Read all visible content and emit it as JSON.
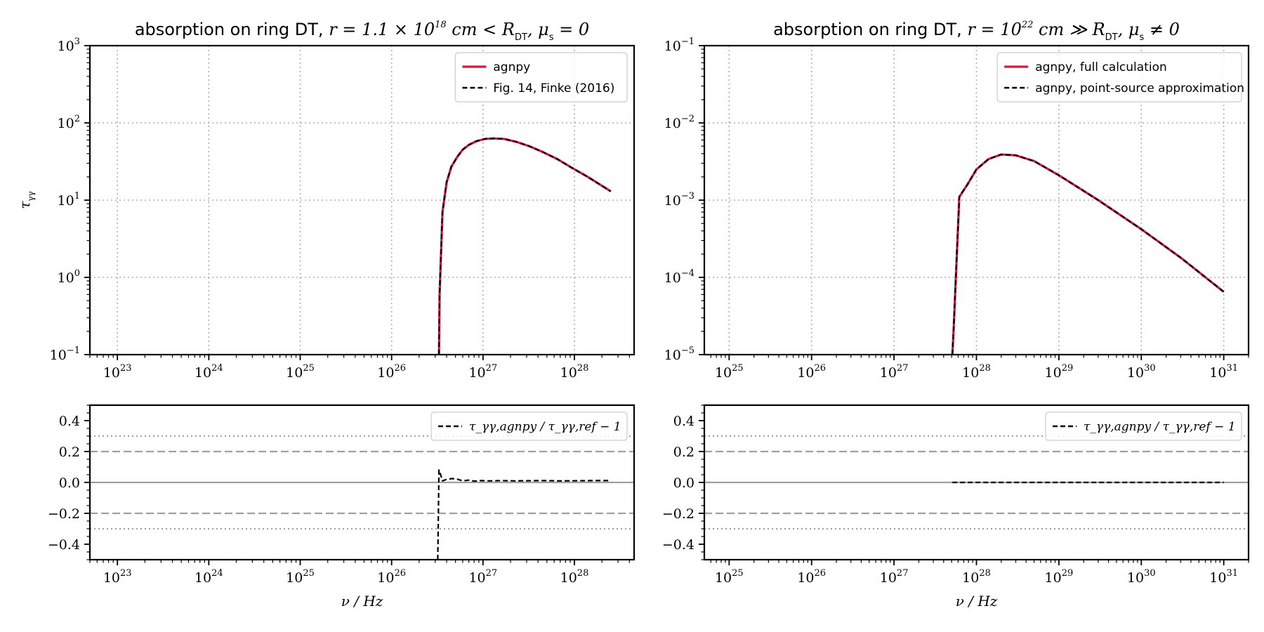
{
  "chart_data": [
    {
      "type": "line",
      "title": "absorption on ring DT, r = 1.1 × 10^18 cm < R_DT, μ_s = 0",
      "title_parts": [
        "absorption on ring DT, ",
        "r = 1.1 × 10",
        "18",
        " cm < R",
        "DT",
        ", μ",
        "s",
        " = 0"
      ],
      "xscale": "log",
      "yscale": "log",
      "xlim": [
        5e+22,
        4.5e+28
      ],
      "ylim": [
        0.1,
        1000
      ],
      "xticks": [
        1e+23,
        1e+24,
        1e+25,
        1e+26,
        1e+27,
        1e+28
      ],
      "xtick_labels": [
        [
          "10",
          "23"
        ],
        [
          "10",
          "24"
        ],
        [
          "10",
          "25"
        ],
        [
          "10",
          "26"
        ],
        [
          "10",
          "27"
        ],
        [
          "10",
          "28"
        ]
      ],
      "yticks": [
        0.1,
        1,
        10,
        100,
        1000
      ],
      "ytick_labels": [
        [
          "10",
          "−1"
        ],
        [
          "10",
          "0"
        ],
        [
          "10",
          "1"
        ],
        [
          "10",
          "2"
        ],
        [
          "10",
          "3"
        ]
      ],
      "xlabel": "",
      "ylabel": "τ_γγ",
      "ylabel_parts": [
        "τ",
        "γγ"
      ],
      "grid": true,
      "legend_position": "top-right",
      "series": [
        {
          "name": "agnpy",
          "color": "#dc143c",
          "style": "solid",
          "x": [
            3.3e+26,
            3.35e+26,
            3.6e+26,
            4e+26,
            4.5e+26,
            5.2e+26,
            6e+26,
            7e+26,
            8.5e+26,
            1.05e+27,
            1.3e+27,
            1.7e+27,
            2.3e+27,
            3.2e+27,
            4.5e+27,
            6.5e+27,
            9.5e+27,
            1.4e+28,
            2.5e+28
          ],
          "y": [
            0.1,
            0.6,
            7,
            17,
            27,
            36,
            45,
            52,
            58,
            62,
            63,
            62,
            57,
            50,
            42,
            34,
            26,
            20,
            13
          ]
        },
        {
          "name": "Fig. 14, Finke (2016)",
          "color": "#000000",
          "style": "dashed",
          "x": [
            3.3e+26,
            3.35e+26,
            3.6e+26,
            4e+26,
            4.5e+26,
            5.2e+26,
            6e+26,
            7e+26,
            8.5e+26,
            1.05e+27,
            1.3e+27,
            1.7e+27,
            2.3e+27,
            3.2e+27,
            4.5e+27,
            6.5e+27,
            9.5e+27,
            1.4e+28,
            2.5e+28
          ],
          "y": [
            0.1,
            0.6,
            7,
            17,
            27,
            36,
            45,
            52,
            58,
            62,
            63,
            62,
            57,
            50,
            42,
            34,
            26,
            20,
            13
          ]
        }
      ]
    },
    {
      "type": "line",
      "title": "absorption on ring DT, r = 10^22 cm ≫ R_DT, μ_s ≠ 0",
      "title_parts": [
        "absorption on ring DT, ",
        "r = 10",
        "22",
        " cm ≫ R",
        "DT",
        ", μ",
        "s",
        " ≠ 0"
      ],
      "xscale": "log",
      "yscale": "log",
      "xlim": [
        5e+24,
        2e+31
      ],
      "ylim": [
        1e-05,
        0.1
      ],
      "xticks": [
        1e+25,
        1e+26,
        1e+27,
        1e+28,
        1e+29,
        1e+30,
        1e+31
      ],
      "xtick_labels": [
        [
          "10",
          "25"
        ],
        [
          "10",
          "26"
        ],
        [
          "10",
          "27"
        ],
        [
          "10",
          "28"
        ],
        [
          "10",
          "29"
        ],
        [
          "10",
          "30"
        ],
        [
          "10",
          "31"
        ]
      ],
      "yticks": [
        1e-05,
        0.0001,
        0.001,
        0.01,
        0.1
      ],
      "ytick_labels": [
        [
          "10",
          "−5"
        ],
        [
          "10",
          "−4"
        ],
        [
          "10",
          "−3"
        ],
        [
          "10",
          "−2"
        ],
        [
          "10",
          "−1"
        ]
      ],
      "xlabel": "",
      "ylabel": "",
      "grid": true,
      "legend_position": "top-right",
      "series": [
        {
          "name": "agnpy, full calculation",
          "color": "#dc143c",
          "style": "solid",
          "x": [
            5.1e+27,
            5.3e+27,
            6.2e+27,
            7.8e+27,
            1e+28,
            1.4e+28,
            2e+28,
            3e+28,
            5e+28,
            1e+29,
            3e+29,
            1e+30,
            3e+30,
            1e+31
          ],
          "y": [
            1e-05,
            2.2e-05,
            0.0011,
            0.0016,
            0.0025,
            0.0034,
            0.0039,
            0.0038,
            0.0032,
            0.0021,
            0.001,
            0.00042,
            0.00018,
            6.5e-05
          ]
        },
        {
          "name": "agnpy, point-source approximation",
          "color": "#000000",
          "style": "dashed",
          "x": [
            5.1e+27,
            5.3e+27,
            6.2e+27,
            7.8e+27,
            1e+28,
            1.4e+28,
            2e+28,
            3e+28,
            5e+28,
            1e+29,
            3e+29,
            1e+30,
            3e+30,
            1e+31
          ],
          "y": [
            1e-05,
            2.2e-05,
            0.0011,
            0.0016,
            0.0025,
            0.0034,
            0.0039,
            0.0038,
            0.0032,
            0.0021,
            0.001,
            0.00042,
            0.00018,
            6.5e-05
          ]
        }
      ]
    },
    {
      "type": "line",
      "title": "",
      "xscale": "log",
      "yscale": "linear",
      "xlim": [
        5e+22,
        4.5e+28
      ],
      "ylim": [
        -0.5,
        0.5
      ],
      "xticks": [
        1e+23,
        1e+24,
        1e+25,
        1e+26,
        1e+27,
        1e+28
      ],
      "xtick_labels": [
        [
          "10",
          "23"
        ],
        [
          "10",
          "24"
        ],
        [
          "10",
          "25"
        ],
        [
          "10",
          "26"
        ],
        [
          "10",
          "27"
        ],
        [
          "10",
          "28"
        ]
      ],
      "yticks": [
        -0.4,
        -0.2,
        0.0,
        0.2,
        0.4
      ],
      "ytick_labels": [
        "−0.4",
        "−0.2",
        "0.0",
        "0.2",
        "0.4"
      ],
      "xlabel": "ν / Hz",
      "ylabel": "",
      "reference_lines": {
        "solid": [
          0.0
        ],
        "dashed": [
          -0.2,
          0.2
        ],
        "dotted": [
          -0.3,
          0.3
        ]
      },
      "legend_position": "top-right",
      "series": [
        {
          "name": "τ_γγ,agnpy / τ_γγ,ref − 1",
          "color": "#000000",
          "style": "dashed",
          "x": [
            3.2e+26,
            3.3e+26,
            3.4e+26,
            3.6e+26,
            4e+26,
            4.6e+26,
            5.3e+26,
            6e+26,
            7e+26,
            8e+26,
            9.5e+26,
            1.2e+27,
            1.6e+27,
            2.2e+27,
            3e+27,
            4.5e+27,
            7e+27,
            1.1e+28,
            1.6e+28,
            2.5e+28
          ],
          "y": [
            -0.5,
            0.08,
            0.06,
            0.01,
            0.02,
            0.025,
            0.02,
            0.01,
            0.015,
            0.008,
            0.012,
            0.01,
            0.012,
            0.01,
            0.011,
            0.012,
            0.01,
            0.011,
            0.012,
            0.012
          ]
        }
      ]
    },
    {
      "type": "line",
      "title": "",
      "xscale": "log",
      "yscale": "linear",
      "xlim": [
        5e+24,
        2e+31
      ],
      "ylim": [
        -0.5,
        0.5
      ],
      "xticks": [
        1e+25,
        1e+26,
        1e+27,
        1e+28,
        1e+29,
        1e+30,
        1e+31
      ],
      "xtick_labels": [
        [
          "10",
          "25"
        ],
        [
          "10",
          "26"
        ],
        [
          "10",
          "27"
        ],
        [
          "10",
          "28"
        ],
        [
          "10",
          "29"
        ],
        [
          "10",
          "30"
        ],
        [
          "10",
          "31"
        ]
      ],
      "yticks": [
        -0.4,
        -0.2,
        0.0,
        0.2,
        0.4
      ],
      "ytick_labels": [
        "−0.4",
        "−0.2",
        "0.0",
        "0.2",
        "0.4"
      ],
      "xlabel": "ν / Hz",
      "ylabel": "",
      "reference_lines": {
        "solid": [
          0.0
        ],
        "dashed": [
          -0.2,
          0.2
        ],
        "dotted": [
          -0.3,
          0.3
        ]
      },
      "legend_position": "top-right",
      "series": [
        {
          "name": "τ_γγ,agnpy / τ_γγ,ref − 1",
          "color": "#000000",
          "style": "dashed",
          "x": [
            5.1e+27,
            1e+28,
            1e+29,
            1e+30,
            1e+31
          ],
          "y": [
            0.0,
            0.0,
            0.0,
            0.0,
            0.0
          ]
        }
      ]
    }
  ]
}
